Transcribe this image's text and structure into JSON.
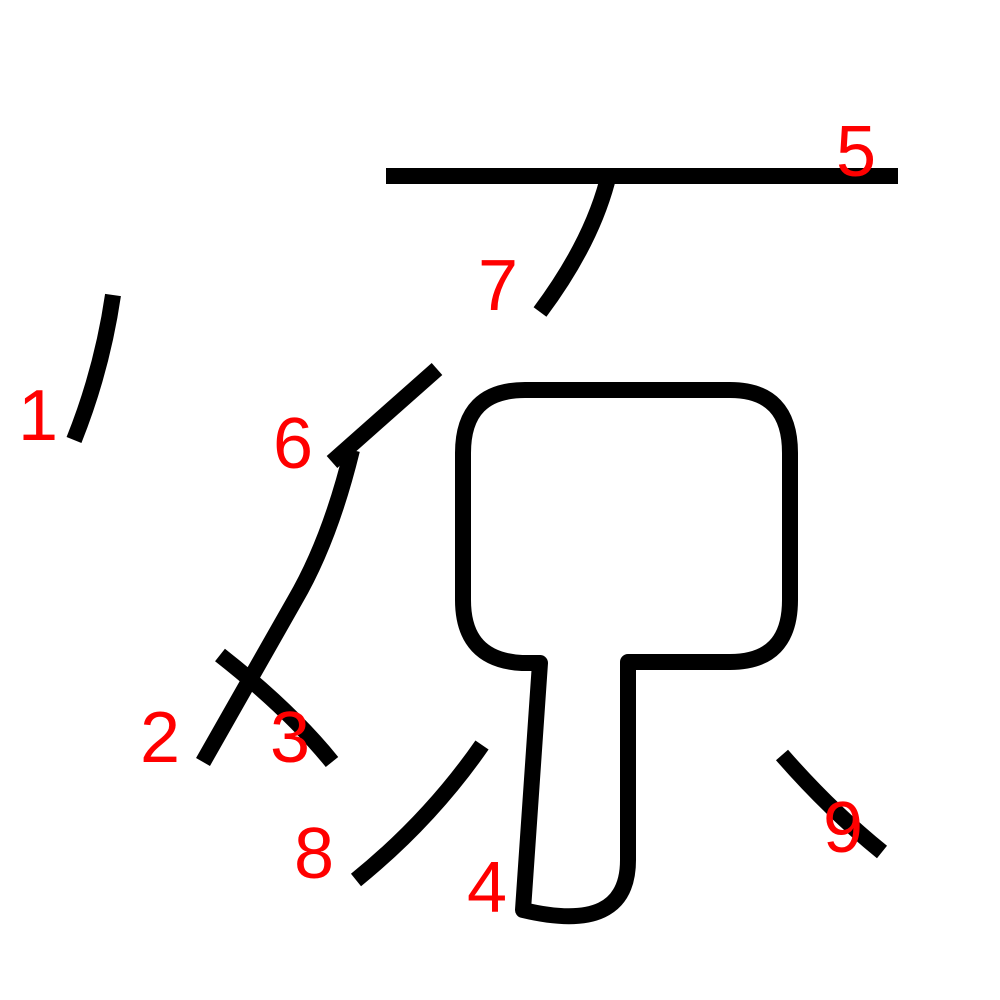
{
  "strokes": [
    {
      "id": "stroke-1",
      "label": "1"
    },
    {
      "id": "stroke-2",
      "label": "2"
    },
    {
      "id": "stroke-3",
      "label": "3"
    },
    {
      "id": "stroke-4",
      "label": "4"
    },
    {
      "id": "stroke-5",
      "label": "5"
    },
    {
      "id": "stroke-6",
      "label": "6"
    },
    {
      "id": "stroke-7",
      "label": "7"
    },
    {
      "id": "stroke-8",
      "label": "8"
    },
    {
      "id": "stroke-9",
      "label": "9"
    }
  ],
  "colors": {
    "stroke": "#000000",
    "label": "#ff0000",
    "background": "#ffffff"
  }
}
